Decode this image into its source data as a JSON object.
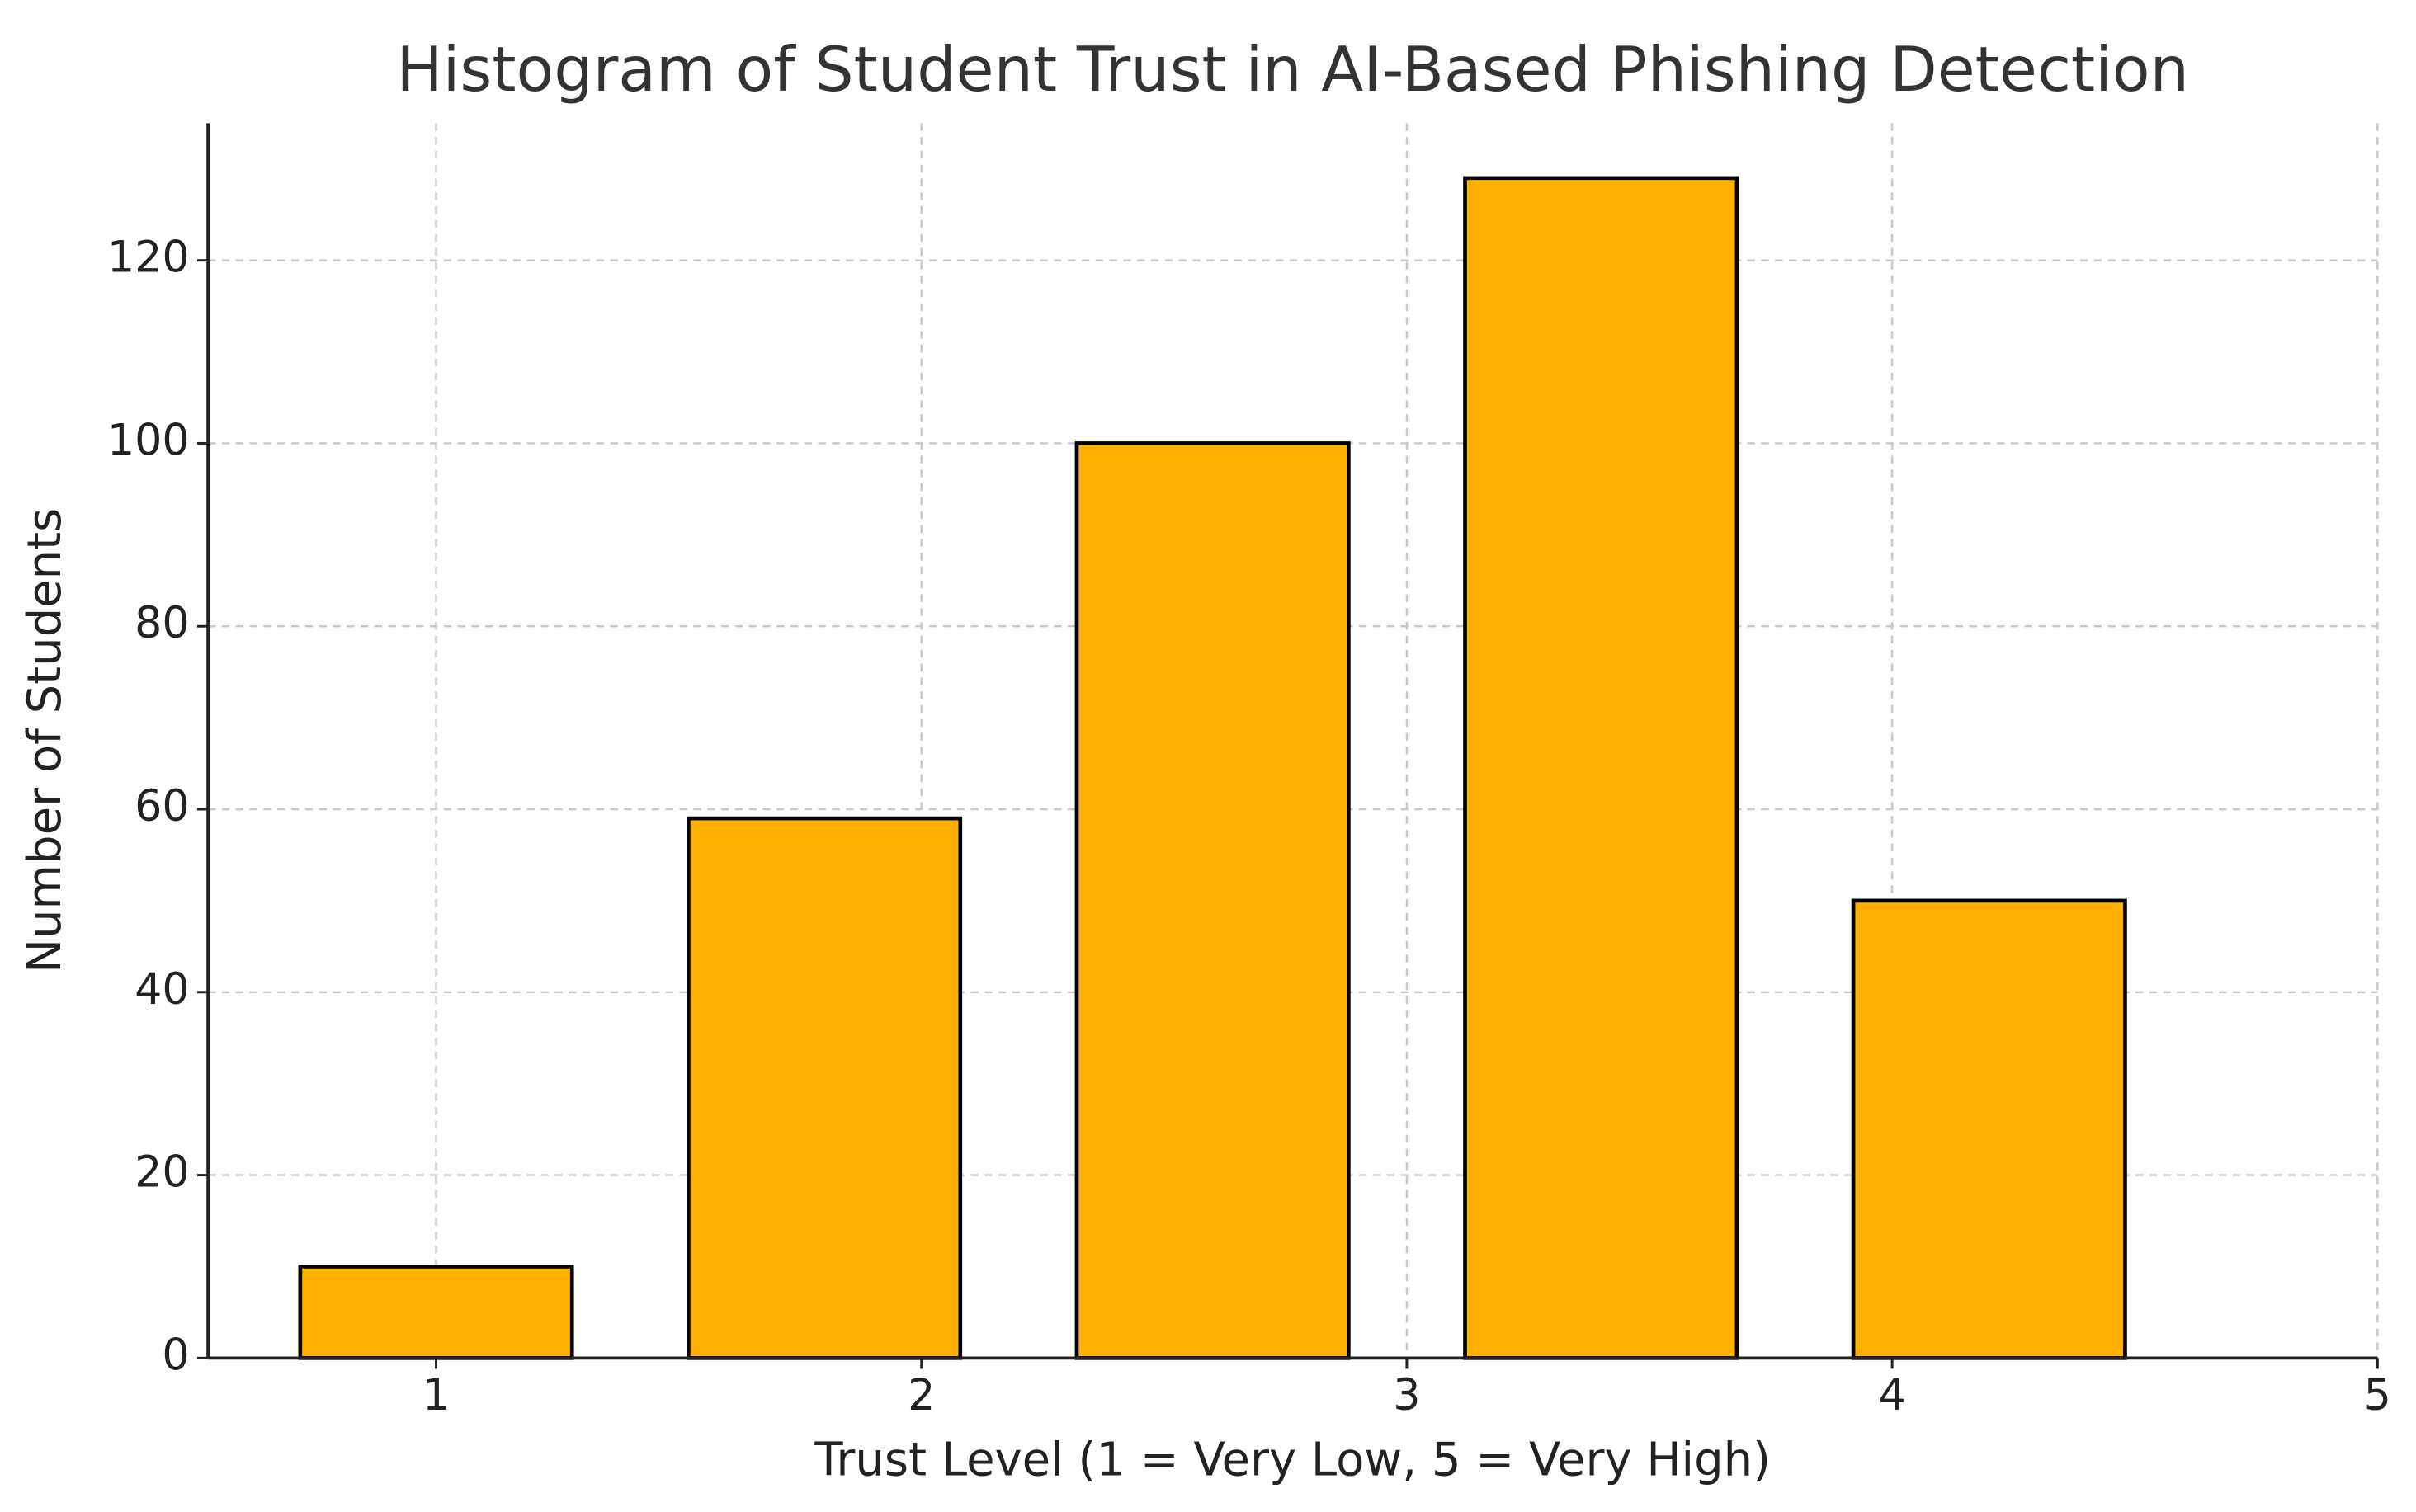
{
  "chart_data": {
    "type": "histogram",
    "title": "Histogram of Student Trust in AI-Based Phishing Detection",
    "x_label": "Trust Level (1 = Very Low, 5 = Very High)",
    "y_label": "Number of Students",
    "bins": [
      0.6,
      1.4,
      2.2,
      3.0,
      3.8,
      4.6
    ],
    "values": [
      10,
      59,
      100,
      129,
      50
    ],
    "color": "#ffb000",
    "edgecolor": "#000000",
    "xlim": [
      0.53,
      5
    ],
    "xticks": [
      1,
      2,
      3,
      4,
      5
    ],
    "ylim": [
      0,
      135
    ],
    "yticks": [
      0,
      20,
      40,
      60,
      80,
      100,
      120
    ],
    "grid": true
  }
}
